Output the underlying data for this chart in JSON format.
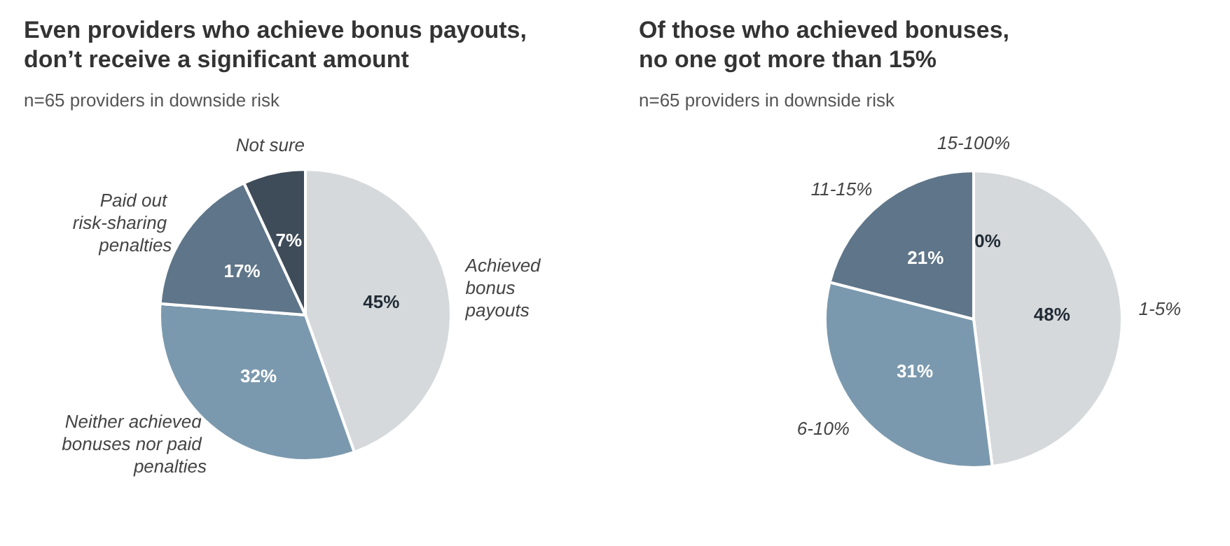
{
  "chart_data": [
    {
      "type": "pie",
      "title": "Even providers who achieve bonus payouts,\ndon’t receive a significant amount",
      "subtitle": "n=65 providers in downside risk",
      "categories": [
        "Achieved bonus payouts",
        "Neither achieved bonuses nor paid penalties",
        "Paid out risk-sharing penalties",
        "Not sure"
      ],
      "values": [
        45,
        32,
        17,
        7
      ],
      "value_labels": [
        "45%",
        "32%",
        "17%",
        "7%"
      ],
      "colors": [
        "#d6d9db",
        "#7b99ae",
        "#5f7589",
        "#3e4b58"
      ],
      "legend": false
    },
    {
      "type": "pie",
      "title": "Of those who achieved bonuses,\nno one got more than 15%",
      "subtitle": "n=65 providers in downside risk",
      "categories": [
        "1-5%",
        "6-10%",
        "11-15%",
        "15-100%"
      ],
      "values": [
        48,
        31,
        21,
        0
      ],
      "value_labels": [
        "48%",
        "31%",
        "21%",
        "0%"
      ],
      "colors": [
        "#d6d9db",
        "#7b99ae",
        "#5f7589",
        "#3e4b58"
      ],
      "legend": false
    }
  ]
}
